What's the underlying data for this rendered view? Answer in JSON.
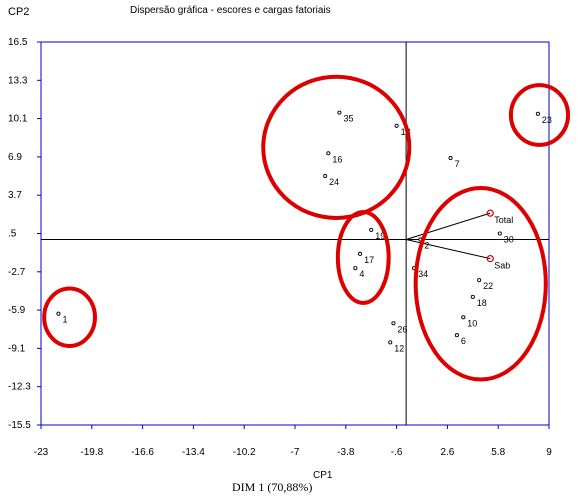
{
  "header": {
    "ylabel": "CP2",
    "title": "Dispersão gráfica - escores e cargas fatoriais"
  },
  "footer": {
    "xlabel": "CP1",
    "dim_label": "DIM 1 (70,88%)"
  },
  "chart_data": {
    "type": "scatter",
    "title": "Dispersão gráfica - escores e cargas fatoriais",
    "xlabel": "CP1",
    "ylabel": "CP2",
    "xlim": [
      -23,
      9
    ],
    "ylim": [
      -15.5,
      16.5
    ],
    "x_ticks": [
      "-23",
      "-19.8",
      "-16.6",
      "-13.4",
      "-10.2",
      "-7",
      "-3.8",
      "-.6",
      "2.6",
      "5.8",
      "9"
    ],
    "y_ticks": [
      "16.5",
      "13.3",
      "10.1",
      "6.9",
      "3.7",
      ".5",
      "-2.7",
      "-5.9",
      "-9.1",
      "-12.3",
      "-15.5"
    ],
    "grid": false,
    "colors": {
      "axis_frame": "#0000cc",
      "points": "#000000",
      "loadings": "#cc0000",
      "highlight_ellipses": "#dd0000"
    },
    "scores": [
      {
        "label": "1",
        "x": -21.9,
        "y": -6.2
      },
      {
        "label": "35",
        "x": -4.2,
        "y": 10.6
      },
      {
        "label": "16",
        "x": -4.9,
        "y": 7.2
      },
      {
        "label": "24",
        "x": -5.1,
        "y": 5.3
      },
      {
        "label": "19",
        "x": -2.2,
        "y": 0.8
      },
      {
        "label": "17",
        "x": -2.9,
        "y": -1.2
      },
      {
        "label": "4",
        "x": -3.2,
        "y": -2.4
      },
      {
        "label": "13",
        "x": -0.6,
        "y": 9.5
      },
      {
        "label": "7",
        "x": 2.8,
        "y": 6.8
      },
      {
        "label": "23",
        "x": 8.3,
        "y": 10.5
      },
      {
        "label": "2",
        "x": 0.9,
        "y": 0.0
      },
      {
        "label": "34",
        "x": 0.5,
        "y": -2.4
      },
      {
        "label": "26",
        "x": -0.8,
        "y": -7.0
      },
      {
        "label": "12",
        "x": -1.0,
        "y": -8.6
      },
      {
        "label": "30",
        "x": 5.9,
        "y": 0.5
      },
      {
        "label": "22",
        "x": 4.6,
        "y": -3.4
      },
      {
        "label": "18",
        "x": 4.2,
        "y": -4.8
      },
      {
        "label": "10",
        "x": 3.6,
        "y": -6.5
      },
      {
        "label": "6",
        "x": 3.2,
        "y": -8.0
      }
    ],
    "loadings": [
      {
        "label": "Total",
        "x": 5.3,
        "y": 2.2
      },
      {
        "label": "Sab",
        "x": 5.3,
        "y": -1.6
      }
    ],
    "highlight_groups": [
      {
        "cx": -21.2,
        "cy": -6.5,
        "rx": 1.6,
        "ry": 2.4
      },
      {
        "cx": -4.4,
        "cy": 7.7,
        "rx": 4.6,
        "ry": 5.9
      },
      {
        "cx": -2.7,
        "cy": -1.5,
        "rx": 1.6,
        "ry": 3.8
      },
      {
        "cx": 8.4,
        "cy": 10.4,
        "rx": 1.8,
        "ry": 2.5
      },
      {
        "cx": 4.7,
        "cy": -3.7,
        "rx": 4.1,
        "ry": 8.0
      }
    ]
  }
}
